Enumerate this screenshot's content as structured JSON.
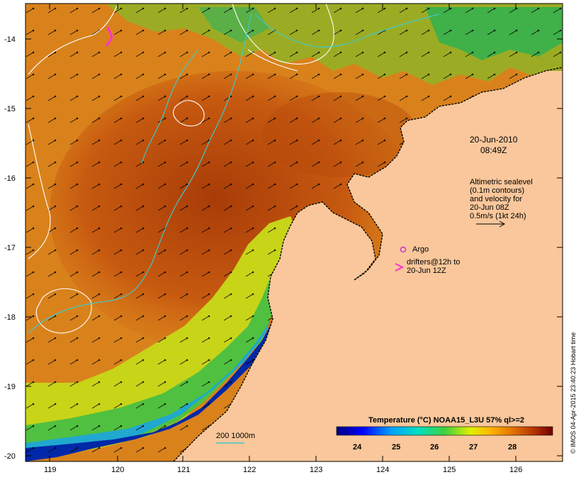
{
  "map": {
    "date_label": "20-Jun-2010",
    "time_label": "08:49Z",
    "lat_ticks": [
      "-14",
      "-15",
      "-16",
      "-17",
      "-18",
      "-19",
      "-20"
    ],
    "lon_ticks": [
      "119",
      "120",
      "121",
      "122",
      "123",
      "124",
      "125",
      "126"
    ],
    "legend_lines": [
      "Altimetric sealevel",
      "(0.1m contours)",
      "and velocity for",
      "20-Jun 08Z",
      "0.5m/s (1kt 24h)"
    ],
    "argo_label": "Argo",
    "drifter_lines": [
      "drifters@12h to",
      "20-Jun 12Z"
    ],
    "isobath_label": "200  1000m",
    "colorbar": {
      "title": "Temperature (°C) NOAA15_L3U 57% ql>=2",
      "ticks": [
        "24",
        "25",
        "26",
        "27",
        "28"
      ]
    },
    "credit": "© IMOS 04-Apr-2015 23:40:23 Hobart time",
    "colors": {
      "land": "#f9c79b",
      "argo": "#cc33cc",
      "drifter": "#ff33cc",
      "isobath": "#40c8c8",
      "sealevel_contour": "#ffffff"
    }
  }
}
